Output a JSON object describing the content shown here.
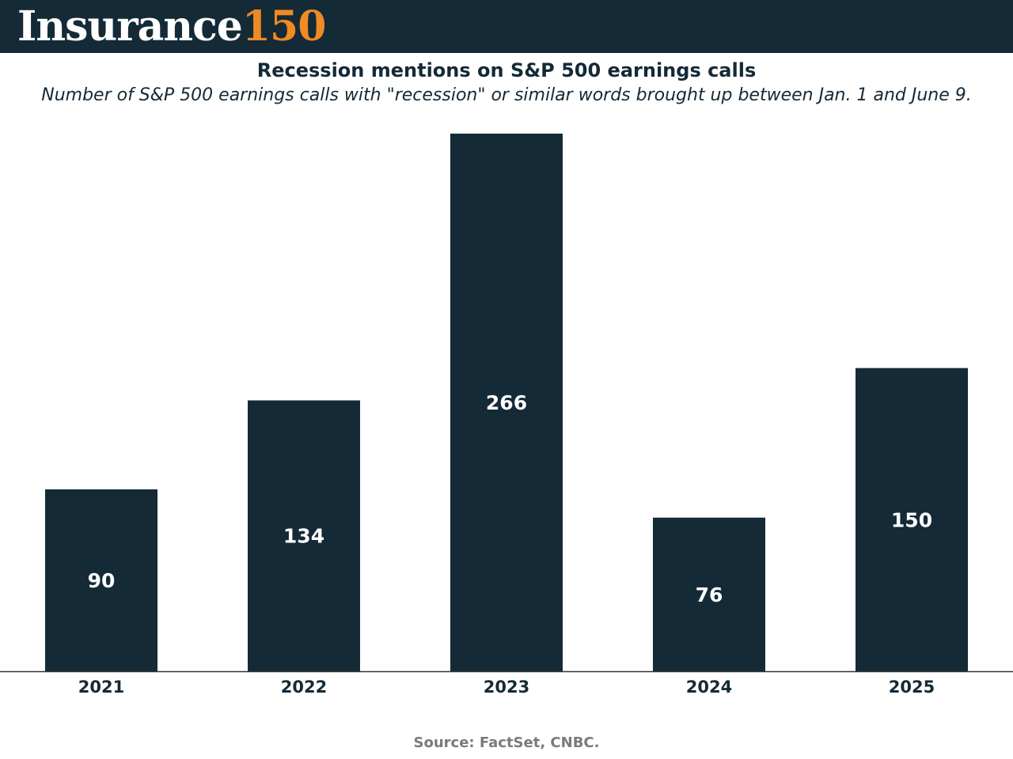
{
  "header": {
    "logo_word": "Insurance",
    "logo_number": "150",
    "colors": {
      "background": "#142a36",
      "word": "#ffffff",
      "number": "#f08a24"
    }
  },
  "footer": {
    "source": "Source: FactSet, CNBC."
  },
  "chart_data": {
    "type": "bar",
    "title": "Recession mentions on S&P 500 earnings calls",
    "subtitle": "Number of S&P 500 earnings calls with \"recession\" or similar words brought up between Jan. 1 and June 9.",
    "xlabel": "",
    "ylabel": "",
    "categories": [
      "2021",
      "2022",
      "2023",
      "2024",
      "2025"
    ],
    "values": [
      90,
      134,
      266,
      76,
      150
    ],
    "data_labels": [
      "90",
      "134",
      "266",
      "76",
      "150"
    ],
    "ylim": [
      0,
      266
    ],
    "grid": false,
    "legend": "none",
    "colors": {
      "bar": "#142a36",
      "bar_label": "#ffffff",
      "axis_label": "#142a36",
      "baseline": "#333333"
    }
  }
}
